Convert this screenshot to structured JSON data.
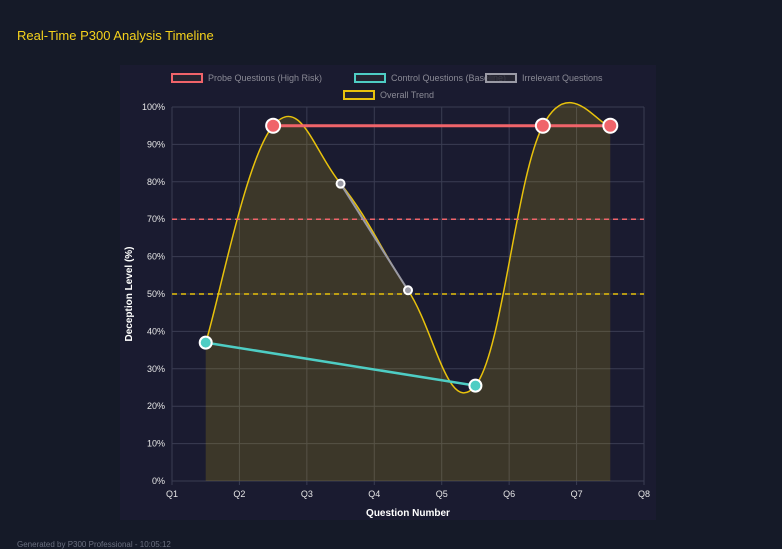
{
  "title": "Real-Time P300 Analysis Timeline",
  "footer": "Generated by P300 Professional - 10:05:12",
  "chart_data": {
    "type": "line",
    "xlabel": "Question Number",
    "ylabel": "Deception Level (%)",
    "categories": [
      "Q1",
      "Q2",
      "Q3",
      "Q4",
      "Q5",
      "Q6",
      "Q7",
      "Q8"
    ],
    "yticks": [
      "0%",
      "10%",
      "20%",
      "30%",
      "40%",
      "50%",
      "60%",
      "70%",
      "80%",
      "90%",
      "100%"
    ],
    "ylim": [
      0,
      100
    ],
    "grid": true,
    "legend": "top",
    "series": [
      {
        "name": "Probe Questions (High Risk)",
        "color": "#f0646a",
        "points": [
          [
            2.5,
            95
          ],
          [
            6.5,
            95
          ],
          [
            7.5,
            95
          ]
        ]
      },
      {
        "name": "Control Questions (Baseline)",
        "color": "#4ecdc4",
        "points": [
          [
            1.5,
            37
          ],
          [
            5.5,
            25.5
          ]
        ]
      },
      {
        "name": "Irrelevant Questions",
        "color": "#9a9aa5",
        "points": [
          [
            3.5,
            79.5
          ],
          [
            4.5,
            51
          ]
        ]
      },
      {
        "name": "Overall Trend",
        "color": "#e8c20c",
        "fill": true,
        "points": [
          [
            1.5,
            37
          ],
          [
            2.5,
            95
          ],
          [
            3.5,
            79.5
          ],
          [
            4.5,
            51
          ],
          [
            5.5,
            25.5
          ],
          [
            6.5,
            95
          ],
          [
            7.5,
            95
          ]
        ]
      }
    ],
    "thresholds": [
      {
        "value": 70,
        "color": "#f0646a"
      },
      {
        "value": 50,
        "color": "#e8c20c"
      }
    ]
  }
}
